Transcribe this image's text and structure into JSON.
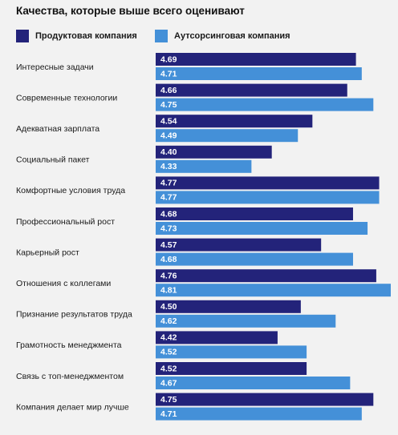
{
  "chart_data": {
    "type": "bar",
    "orientation": "horizontal",
    "title": "Качества, которые выше всего оценивают",
    "xlim": [
      4.0,
      4.81
    ],
    "grid": false,
    "legend_position": "top",
    "categories": [
      "Интересные задачи",
      "Современные технологии",
      "Адекватная зарплата",
      "Социальный пакет",
      "Комфортные условия труда",
      "Профессиональный рост",
      "Карьерный рост",
      "Отношения с коллегами",
      "Признание результатов труда",
      "Грамотность менеджмента",
      "Связь с топ-менеджментом",
      "Компания делает мир лучше"
    ],
    "series": [
      {
        "name": "Продуктовая компания",
        "color": "#23237a",
        "values": [
          4.69,
          4.66,
          4.54,
          4.4,
          4.77,
          4.68,
          4.57,
          4.76,
          4.5,
          4.42,
          4.52,
          4.75
        ],
        "labels": [
          "4.69",
          "4.66",
          "4.54",
          "4.40",
          "4.77",
          "4.68",
          "4.57",
          "4.76",
          "4.50",
          "4.42",
          "4.52",
          "4.75"
        ]
      },
      {
        "name": "Аутсорсинговая компания",
        "color": "#4490d8",
        "values": [
          4.71,
          4.75,
          4.49,
          4.33,
          4.77,
          4.73,
          4.68,
          4.81,
          4.62,
          4.52,
          4.67,
          4.71
        ],
        "labels": [
          "4.71",
          "4.75",
          "4.49",
          "4.33",
          "4.77",
          "4.73",
          "4.68",
          "4.81",
          "4.62",
          "4.52",
          "4.67",
          "4.71"
        ]
      }
    ]
  }
}
